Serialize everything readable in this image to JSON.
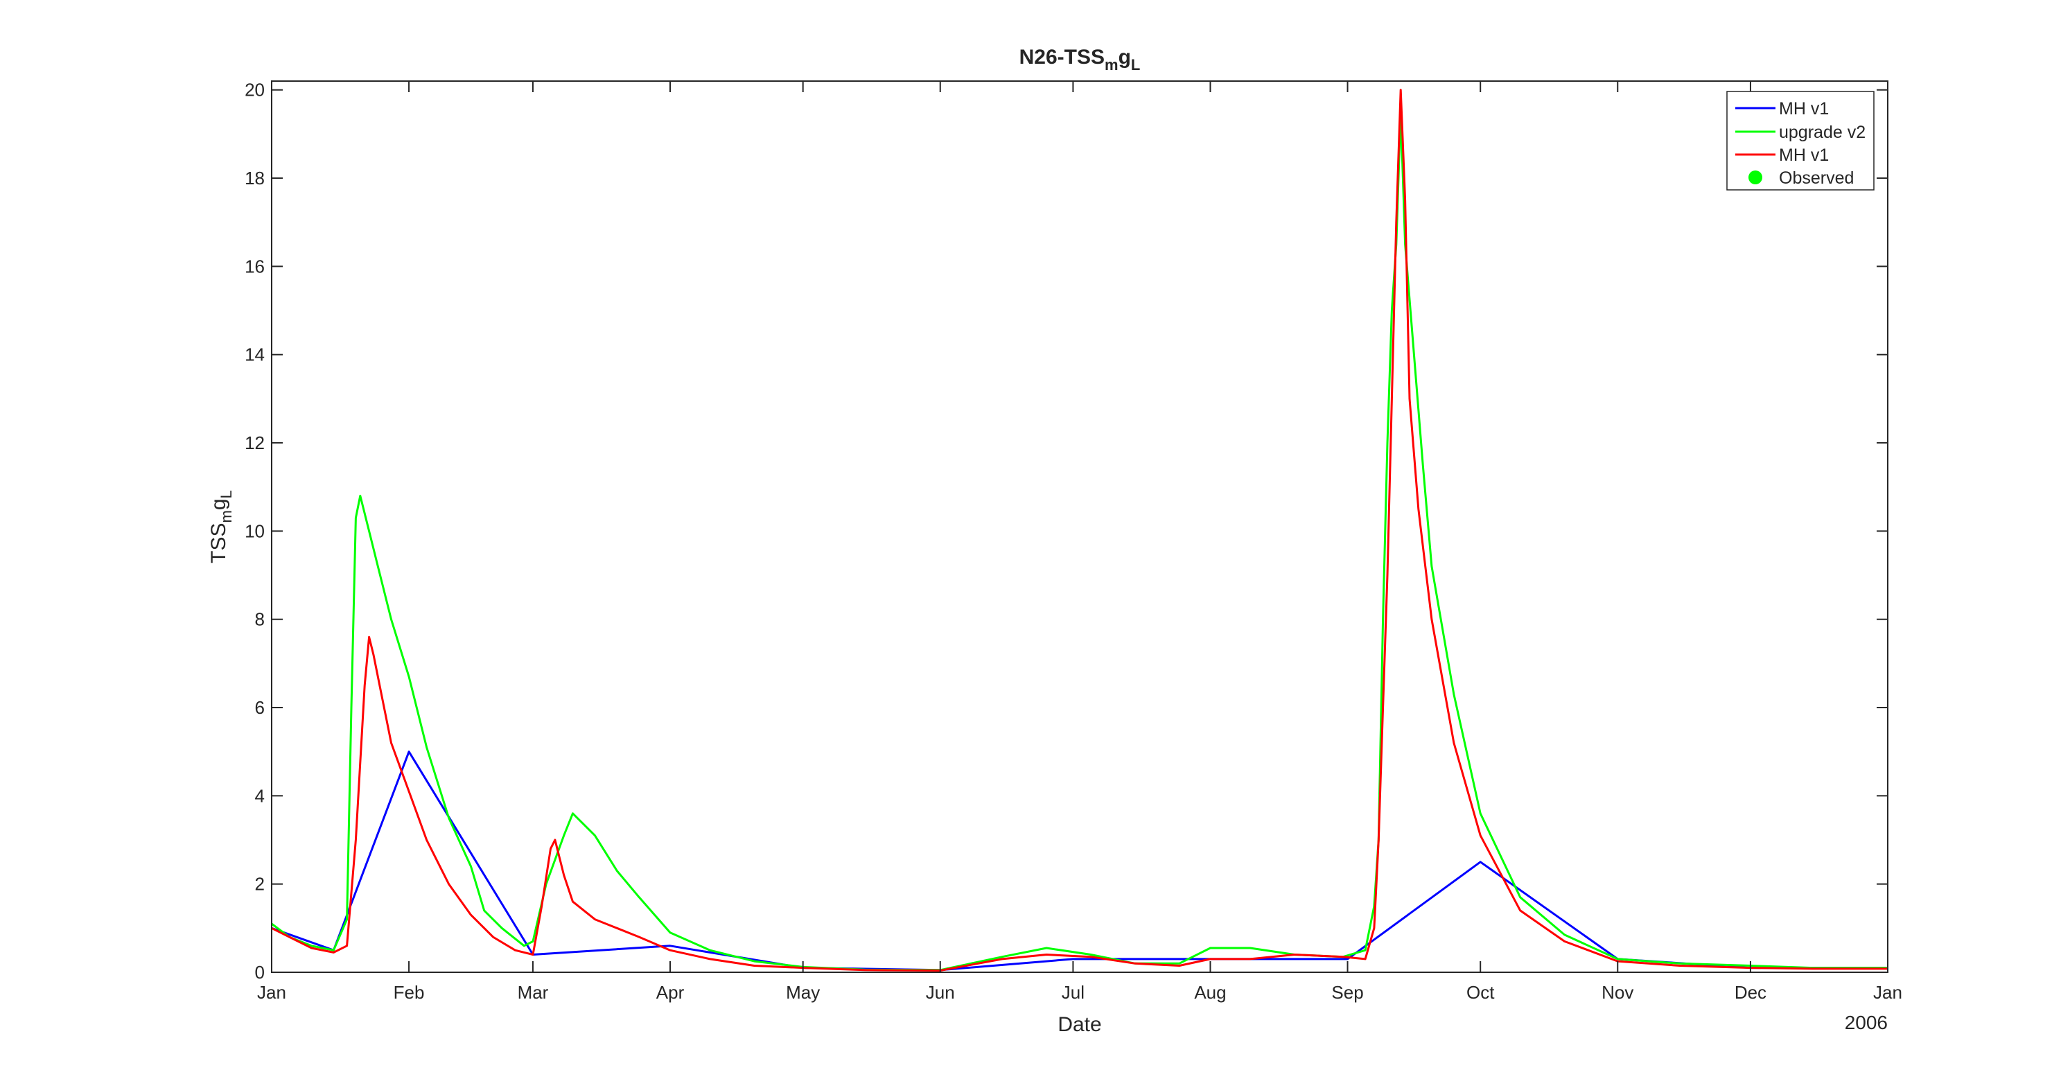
{
  "chart_data": {
    "type": "line",
    "title": {
      "base": "N26-TSS",
      "sub1": "m",
      "mid": "g",
      "sub2": "L"
    },
    "xlabel": "Date",
    "ylabel": {
      "base": "TSS",
      "sub1": "m",
      "mid": "g",
      "sub2": "L"
    },
    "year_label": "2006",
    "ylim": [
      0,
      20.2
    ],
    "yticks": [
      0,
      2,
      4,
      6,
      8,
      10,
      12,
      14,
      16,
      18,
      20
    ],
    "xlim": [
      "2005-01-01",
      "2006-01-01"
    ],
    "xticks": [
      {
        "label": "Jan",
        "date": "2005-01-01"
      },
      {
        "label": "Feb",
        "date": "2005-02-01"
      },
      {
        "label": "Mar",
        "date": "2005-03-01"
      },
      {
        "label": "Apr",
        "date": "2005-04-01"
      },
      {
        "label": "May",
        "date": "2005-05-01"
      },
      {
        "label": "Jun",
        "date": "2005-06-01"
      },
      {
        "label": "Jul",
        "date": "2005-07-01"
      },
      {
        "label": "Aug",
        "date": "2005-08-01"
      },
      {
        "label": "Sep",
        "date": "2005-09-01"
      },
      {
        "label": "Oct",
        "date": "2005-10-01"
      },
      {
        "label": "Nov",
        "date": "2005-11-01"
      },
      {
        "label": "Dec",
        "date": "2005-12-01"
      },
      {
        "label": "Jan",
        "date": "2006-01-01"
      }
    ],
    "grid": false,
    "legend_position": "top-right",
    "series": [
      {
        "name": "MH v1",
        "color": "#0000ff",
        "x": [
          "2005-01-01",
          "2005-01-15",
          "2005-02-01",
          "2005-03-01",
          "2005-04-01",
          "2005-05-01",
          "2005-06-01",
          "2005-07-01",
          "2005-08-01",
          "2005-09-01",
          "2005-10-01",
          "2005-11-01",
          "2005-12-01",
          "2006-01-01"
        ],
        "y": [
          1.0,
          0.5,
          5.0,
          0.4,
          0.6,
          0.1,
          0.05,
          0.3,
          0.3,
          0.3,
          2.5,
          0.3,
          0.1,
          0.1
        ]
      },
      {
        "name": "upgrade v2",
        "color": "#00ff00",
        "x": [
          "2005-01-01",
          "2005-01-05",
          "2005-01-10",
          "2005-01-15",
          "2005-01-18",
          "2005-01-19",
          "2005-01-20",
          "2005-01-21",
          "2005-01-23",
          "2005-01-25",
          "2005-01-28",
          "2005-02-01",
          "2005-02-05",
          "2005-02-10",
          "2005-02-15",
          "2005-02-18",
          "2005-02-22",
          "2005-02-27",
          "2005-03-01",
          "2005-03-04",
          "2005-03-08",
          "2005-03-10",
          "2005-03-15",
          "2005-03-20",
          "2005-03-25",
          "2005-04-01",
          "2005-04-10",
          "2005-04-20",
          "2005-05-01",
          "2005-05-15",
          "2005-06-01",
          "2005-06-15",
          "2005-06-25",
          "2005-07-05",
          "2005-07-15",
          "2005-07-25",
          "2005-08-01",
          "2005-08-10",
          "2005-08-20",
          "2005-08-31",
          "2005-09-05",
          "2005-09-07",
          "2005-09-08",
          "2005-09-09",
          "2005-09-10",
          "2005-09-11",
          "2005-09-12",
          "2005-09-13",
          "2005-09-14",
          "2005-09-16",
          "2005-09-18",
          "2005-09-20",
          "2005-09-25",
          "2005-10-01",
          "2005-10-10",
          "2005-10-20",
          "2005-11-01",
          "2005-11-15",
          "2005-12-01",
          "2005-12-15",
          "2006-01-01"
        ],
        "y": [
          1.1,
          0.8,
          0.6,
          0.5,
          1.2,
          6.0,
          10.3,
          10.8,
          10.0,
          9.2,
          8.0,
          6.7,
          5.1,
          3.5,
          2.4,
          1.4,
          1.0,
          0.6,
          0.7,
          2.0,
          3.1,
          3.6,
          3.1,
          2.3,
          1.7,
          0.9,
          0.5,
          0.25,
          0.12,
          0.06,
          0.05,
          0.35,
          0.55,
          0.4,
          0.2,
          0.2,
          0.55,
          0.55,
          0.4,
          0.35,
          0.5,
          1.5,
          3.0,
          8.0,
          12.0,
          15.0,
          16.5,
          19.5,
          16.5,
          14.0,
          11.5,
          9.2,
          6.3,
          3.6,
          1.7,
          0.85,
          0.3,
          0.2,
          0.15,
          0.1,
          0.1
        ]
      },
      {
        "name": "MH v1",
        "color": "#ff0000",
        "x": [
          "2005-01-01",
          "2005-01-05",
          "2005-01-10",
          "2005-01-15",
          "2005-01-18",
          "2005-01-20",
          "2005-01-22",
          "2005-01-23",
          "2005-01-24",
          "2005-01-26",
          "2005-01-28",
          "2005-02-01",
          "2005-02-05",
          "2005-02-10",
          "2005-02-15",
          "2005-02-20",
          "2005-02-25",
          "2005-03-01",
          "2005-03-03",
          "2005-03-05",
          "2005-03-06",
          "2005-03-08",
          "2005-03-10",
          "2005-03-15",
          "2005-03-20",
          "2005-03-25",
          "2005-04-01",
          "2005-04-10",
          "2005-04-20",
          "2005-05-01",
          "2005-05-15",
          "2005-06-01",
          "2005-06-15",
          "2005-06-25",
          "2005-07-05",
          "2005-07-15",
          "2005-07-25",
          "2005-08-01",
          "2005-08-10",
          "2005-08-20",
          "2005-08-31",
          "2005-09-05",
          "2005-09-07",
          "2005-09-08",
          "2005-09-09",
          "2005-09-10",
          "2005-09-11",
          "2005-09-12",
          "2005-09-13",
          "2005-09-14",
          "2005-09-15",
          "2005-09-17",
          "2005-09-20",
          "2005-09-25",
          "2005-10-01",
          "2005-10-10",
          "2005-10-20",
          "2005-11-01",
          "2005-11-15",
          "2005-12-01",
          "2005-12-15",
          "2006-01-01"
        ],
        "y": [
          1.0,
          0.8,
          0.55,
          0.45,
          0.6,
          3.0,
          6.5,
          7.6,
          7.2,
          6.2,
          5.2,
          4.1,
          3.0,
          2.0,
          1.3,
          0.8,
          0.5,
          0.4,
          1.5,
          2.8,
          3.0,
          2.2,
          1.6,
          1.2,
          1.0,
          0.8,
          0.5,
          0.3,
          0.15,
          0.1,
          0.05,
          0.04,
          0.3,
          0.4,
          0.35,
          0.2,
          0.15,
          0.3,
          0.3,
          0.4,
          0.35,
          0.3,
          1.0,
          3.0,
          6.0,
          9.0,
          13.0,
          17.0,
          20.0,
          17.5,
          13.0,
          10.5,
          8.0,
          5.2,
          3.1,
          1.4,
          0.7,
          0.25,
          0.15,
          0.1,
          0.08,
          0.08
        ]
      }
    ],
    "legend": [
      {
        "label": "MH v1",
        "color": "#0000ff",
        "marker": "line"
      },
      {
        "label": "upgrade v2",
        "color": "#00ff00",
        "marker": "line"
      },
      {
        "label": "MH v1",
        "color": "#ff0000",
        "marker": "line"
      },
      {
        "label": "Observed",
        "color": "#00ff00",
        "marker": "circle"
      }
    ]
  }
}
